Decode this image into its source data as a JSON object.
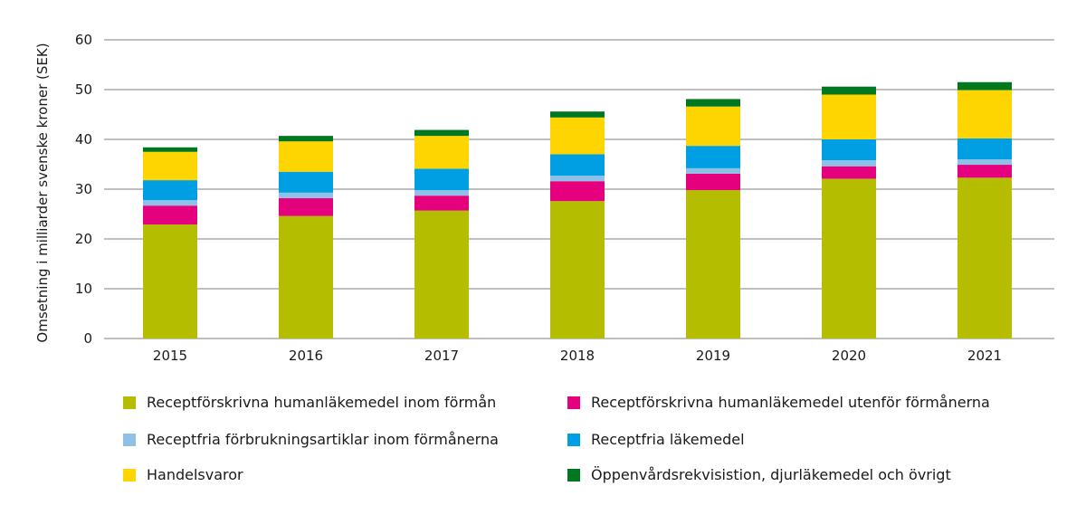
{
  "chart_data": {
    "type": "bar",
    "stacked": true,
    "title": "",
    "xlabel": "",
    "ylabel": "Omsetning i milliarder svenske kroner (SEK)",
    "ylim": [
      0,
      60
    ],
    "yticks": [
      0,
      10,
      20,
      30,
      40,
      50,
      60
    ],
    "grid": true,
    "legend_position": "bottom",
    "categories": [
      "2015",
      "2016",
      "2017",
      "2018",
      "2019",
      "2020",
      "2021"
    ],
    "series": [
      {
        "name": "Receptförskrivna humanläkemedel inom förmån",
        "color": "#b5bd00",
        "values": [
          22.9,
          24.6,
          25.7,
          27.6,
          29.8,
          32.1,
          32.3
        ]
      },
      {
        "name": "Receptförskrivna humanläkemedel utenför förmånerna",
        "color": "#e5007d",
        "values": [
          3.8,
          3.6,
          3.0,
          4.0,
          3.3,
          2.5,
          2.6
        ]
      },
      {
        "name": "Receptfria förbrukningsartiklar inom förmånerna",
        "color": "#8fc1e8",
        "values": [
          1.1,
          1.1,
          1.1,
          1.1,
          1.1,
          1.2,
          1.1
        ]
      },
      {
        "name": "Receptfria läkemedel",
        "color": "#009fe3",
        "values": [
          4.0,
          4.2,
          4.3,
          4.3,
          4.5,
          4.2,
          4.2
        ]
      },
      {
        "name": "Handelsvaror",
        "color": "#ffd500",
        "values": [
          5.7,
          6.1,
          6.6,
          7.4,
          7.9,
          9.0,
          9.7
        ]
      },
      {
        "name": "Öppenvårdsrekvisistion, djurläkemedel och övrigt",
        "color": "#00781f",
        "values": [
          0.9,
          1.1,
          1.2,
          1.2,
          1.5,
          1.6,
          1.6
        ]
      }
    ]
  }
}
